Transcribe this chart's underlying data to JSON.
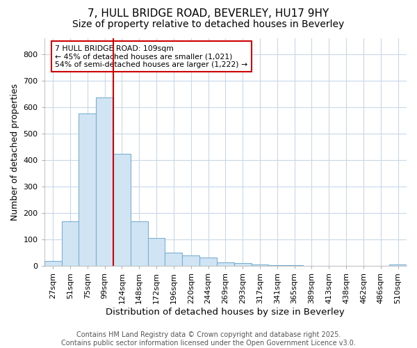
{
  "title": "7, HULL BRIDGE ROAD, BEVERLEY, HU17 9HY",
  "subtitle": "Size of property relative to detached houses in Beverley",
  "xlabel": "Distribution of detached houses by size in Beverley",
  "ylabel": "Number of detached properties",
  "categories": [
    "27sqm",
    "51sqm",
    "75sqm",
    "99sqm",
    "124sqm",
    "148sqm",
    "172sqm",
    "196sqm",
    "220sqm",
    "244sqm",
    "269sqm",
    "293sqm",
    "317sqm",
    "341sqm",
    "365sqm",
    "389sqm",
    "413sqm",
    "438sqm",
    "462sqm",
    "486sqm",
    "510sqm"
  ],
  "values": [
    18,
    168,
    575,
    637,
    425,
    170,
    105,
    52,
    40,
    32,
    13,
    10,
    6,
    4,
    3,
    2,
    1,
    1,
    0,
    0,
    5
  ],
  "bar_color": "#d0e4f4",
  "bar_edge_color": "#7ab0d0",
  "vline_x": 3,
  "vline_color": "#cc0000",
  "annotation_text": "7 HULL BRIDGE ROAD: 109sqm\n← 45% of detached houses are smaller (1,021)\n54% of semi-detached houses are larger (1,222) →",
  "annotation_box_color": "#ffffff",
  "annotation_box_edge_color": "#cc0000",
  "ylim": [
    0,
    860
  ],
  "yticks": [
    0,
    100,
    200,
    300,
    400,
    500,
    600,
    700,
    800
  ],
  "footer": "Contains HM Land Registry data © Crown copyright and database right 2025.\nContains public sector information licensed under the Open Government Licence v3.0.",
  "bg_color": "#ffffff",
  "grid_color": "#c8d8e8",
  "title_fontsize": 11,
  "subtitle_fontsize": 10,
  "xlabel_fontsize": 9.5,
  "ylabel_fontsize": 9,
  "tick_fontsize": 8,
  "footer_fontsize": 7
}
